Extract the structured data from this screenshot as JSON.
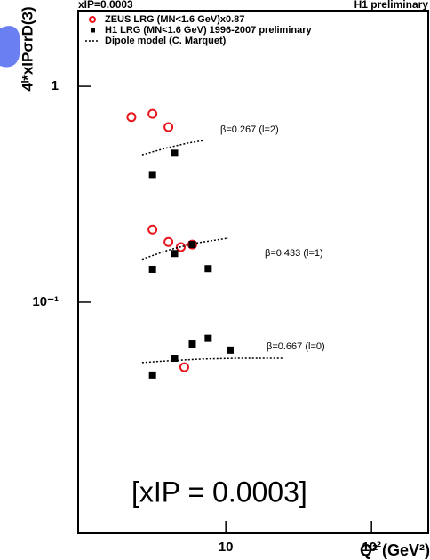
{
  "chart_data": {
    "type": "scatter",
    "title": "xIP=0.0003",
    "subtitle": "H1 preliminary",
    "x_label": "Q² (GeV²)",
    "y_label": "4ˡ*xIPσrD(3)",
    "annotations": [
      "β=0.267 (l=2)",
      "β=0.433 (l=1)",
      "β=0.667 (l=0)",
      "[xIP = 0.0003]"
    ],
    "xscale": "log",
    "yscale": "log",
    "xlim": [
      0.97,
      245
    ],
    "ylim": [
      0.0085,
      2.24
    ],
    "xticks": [
      {
        "value": 10,
        "label": "10"
      },
      {
        "value": 100,
        "label": "10²"
      }
    ],
    "yticks": [
      {
        "value": 0.1,
        "label": "10⁻¹"
      },
      1
    ],
    "series": [
      {
        "name": "ZEUS LRG (MN<1.6 GeV)x0.87",
        "type": "scatter",
        "marker": "open-circle",
        "color": "#e8141c",
        "x": [
          2.25,
          3.14,
          4.04,
          3.14,
          4.04,
          4.91,
          5.89,
          5.19
        ],
        "values": [
          0.72,
          0.745,
          0.647,
          0.217,
          0.19,
          0.18,
          0.185,
          0.05
        ]
      },
      {
        "name": "H1 LRG (MN<1.6 GeV) 1996-2007 preliminary",
        "type": "scatter",
        "marker": "square",
        "color": "#000000",
        "x": [
          3.14,
          4.45,
          3.14,
          4.45,
          5.89,
          7.57,
          3.14,
          4.45,
          5.89,
          7.57,
          10.7
        ],
        "values": [
          0.39,
          0.49,
          0.142,
          0.168,
          0.185,
          0.143,
          0.046,
          0.055,
          0.064,
          0.068,
          0.06
        ]
      },
      {
        "name": "Dipole model (C. Marquet)",
        "type": "line",
        "color": "#000000",
        "x": [
          2.66,
          4,
          5.5,
          7.05,
          null,
          2.66,
          4,
          6,
          10.4,
          null,
          2.66,
          4,
          7,
          12,
          24.8
        ],
        "values": [
          0.482,
          0.52,
          0.546,
          0.561,
          null,
          0.158,
          0.174,
          0.187,
          0.198,
          null,
          0.0525,
          0.0535,
          0.0546,
          0.055,
          0.055
        ]
      }
    ]
  }
}
